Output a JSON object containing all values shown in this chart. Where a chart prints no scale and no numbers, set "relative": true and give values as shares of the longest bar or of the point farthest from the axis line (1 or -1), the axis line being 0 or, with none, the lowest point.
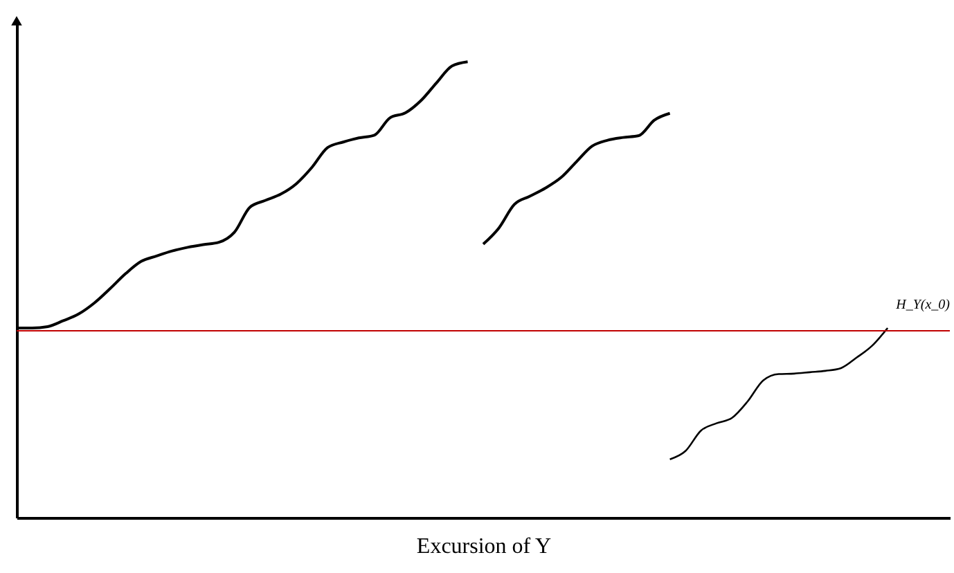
{
  "chart_data": {
    "type": "line",
    "relative": true,
    "xlabel": "Excursion of Y",
    "marker": "none",
    "line_style": "solid",
    "categories": [
      null,
      null,
      null,
      null,
      null,
      null,
      null,
      null,
      null,
      null,
      null,
      null,
      null,
      null,
      null,
      null,
      null,
      null,
      null,
      null,
      null,
      null,
      null,
      null,
      null,
      null,
      null,
      null,
      null,
      null,
      null,
      null,
      null,
      null,
      null,
      null,
      null,
      null,
      null,
      null,
      null,
      null,
      null,
      null,
      null,
      null,
      null,
      null,
      null,
      null,
      null,
      null,
      null,
      null,
      null,
      null,
      null,
      null,
      null,
      null,
      null
    ],
    "series": [
      {
        "color": "#000000",
        "values": [
          0.416,
          0.416,
          0.419,
          0.432,
          0.447,
          0.471,
          0.502,
          0.535,
          0.562,
          0.574,
          0.585,
          0.593,
          0.599,
          0.604,
          0.626,
          0.681,
          0.696,
          0.71,
          0.733,
          0.769,
          0.812,
          0.824,
          0.833,
          0.839,
          0.877,
          0.888,
          0.915,
          0.954,
          0.991,
          1.0,
          null,
          null,
          null,
          null,
          null,
          null,
          null,
          null,
          null,
          null,
          null,
          null,
          null,
          null,
          null,
          null,
          null,
          null,
          null,
          null,
          null,
          null,
          null,
          null,
          null,
          null,
          null,
          null,
          null,
          null,
          null
        ]
      },
      {
        "color": "#000000",
        "values": [
          null,
          null,
          null,
          null,
          null,
          null,
          null,
          null,
          null,
          null,
          null,
          null,
          null,
          null,
          null,
          null,
          null,
          null,
          null,
          null,
          null,
          null,
          null,
          null,
          null,
          null,
          null,
          null,
          null,
          null,
          0.6,
          0.635,
          0.687,
          0.705,
          0.723,
          0.746,
          0.781,
          0.815,
          0.828,
          0.834,
          0.838,
          0.872,
          0.887,
          null,
          null,
          null,
          null,
          null,
          null,
          null,
          null,
          null,
          null,
          null,
          null,
          null,
          null,
          null,
          null,
          null,
          null
        ]
      },
      {
        "color": "#000000",
        "values": [
          null,
          null,
          null,
          null,
          null,
          null,
          null,
          null,
          null,
          null,
          null,
          null,
          null,
          null,
          null,
          null,
          null,
          null,
          null,
          null,
          null,
          null,
          null,
          null,
          null,
          null,
          null,
          null,
          null,
          null,
          null,
          null,
          null,
          null,
          null,
          null,
          null,
          null,
          null,
          null,
          null,
          null,
          0.128,
          0.146,
          0.191,
          0.207,
          0.219,
          0.255,
          0.301,
          0.315,
          0.316,
          0.319,
          0.322,
          0.328,
          0.351,
          0.377,
          0.416,
          null,
          null,
          null,
          null
        ]
      }
    ],
    "ref_lines": [
      {
        "axis": "y",
        "value": 0.41,
        "label": "H_Y(x_0)",
        "color": "#c00000",
        "line_style": "solid"
      }
    ]
  }
}
